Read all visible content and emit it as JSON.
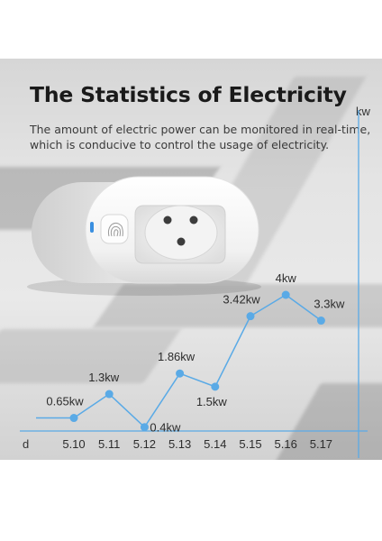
{
  "title": "The Statistics of Electricity",
  "subtitle_line1": "The amount of electric power can be monitored in real-time,",
  "subtitle_line2": "which is conducive to control the usage of electricity.",
  "y_unit": "kw",
  "x_unit": "d",
  "colors": {
    "accent": "#5aaae6",
    "text": "#2c2c2c",
    "title": "#1a1a1a"
  },
  "chart_data": {
    "type": "line",
    "title": "",
    "xlabel": "d",
    "ylabel": "kw",
    "categories": [
      "5.10",
      "5.11",
      "5.12",
      "5.13",
      "5.14",
      "5.15",
      "5.16",
      "5.17"
    ],
    "values": [
      0.65,
      1.3,
      0.4,
      1.86,
      1.5,
      3.42,
      4,
      3.3
    ],
    "data_labels": [
      "0.65kw",
      "1.3kw",
      "0.4kw",
      "1.86kw",
      "1.5kw",
      "3.42kw",
      "4kw",
      "3.3kw"
    ],
    "grid": false,
    "legend": "none"
  }
}
